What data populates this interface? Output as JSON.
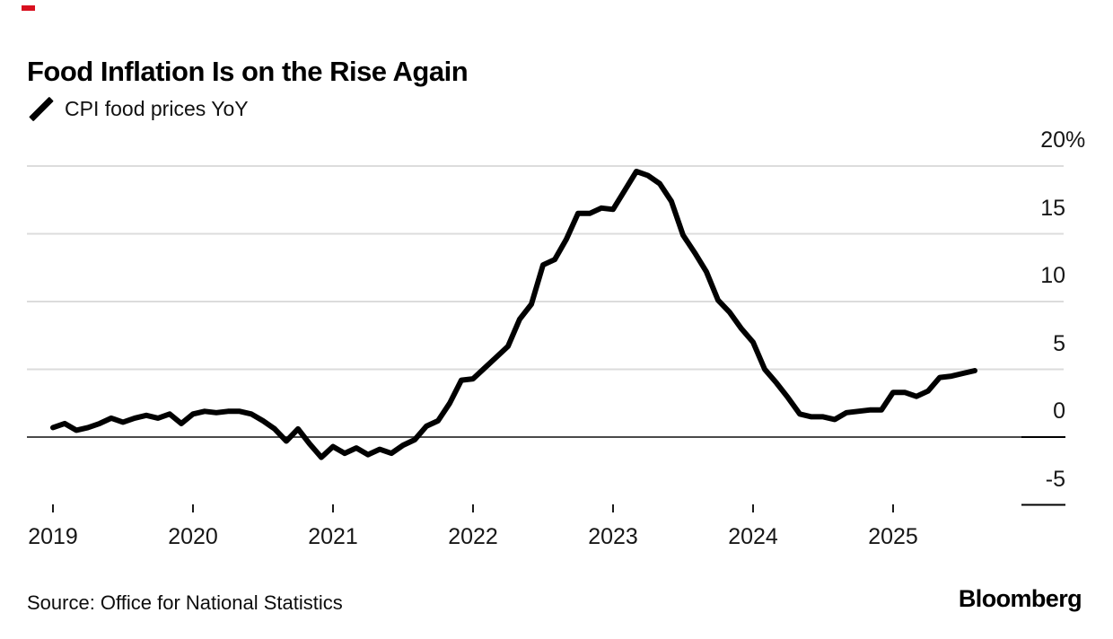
{
  "brand": {
    "red_mark_color": "#d8101f",
    "logo_text": "Bloomberg"
  },
  "header": {
    "title": "Food Inflation Is on the Rise Again"
  },
  "legend": {
    "series_label": "CPI food prices YoY",
    "swatch_color": "#000000"
  },
  "source": {
    "text": "Source: Office for National Statistics"
  },
  "chart_data": {
    "type": "line",
    "title": "Food Inflation Is on the Rise Again",
    "xlabel": "",
    "ylabel": "CPI food prices YoY (%)",
    "frequency": "monthly",
    "x_start": "2019-01",
    "x_end": "2025-08",
    "grid": "horizontal",
    "legend_position": "top-left",
    "line_color": "#000000",
    "grid_color": "#dcdcdc",
    "zero_line_color": "#4a4a4a",
    "axis_text_color": "#161616",
    "ylim": [
      -6.5,
      22
    ],
    "x_tick_labels": [
      "2019",
      "2020",
      "2021",
      "2022",
      "2023",
      "2024",
      "2025"
    ],
    "x_tick_month_index": [
      0,
      12,
      24,
      36,
      48,
      60,
      72
    ],
    "y_ticks": [
      {
        "label": "20",
        "suffix": "%",
        "value": 20,
        "style": "grid"
      },
      {
        "label": "15",
        "suffix": "",
        "value": 15,
        "style": "grid"
      },
      {
        "label": "10",
        "suffix": "",
        "value": 10,
        "style": "grid"
      },
      {
        "label": "5",
        "suffix": "",
        "value": 5,
        "style": "grid"
      },
      {
        "label": "0",
        "suffix": "",
        "value": 0,
        "style": "zero"
      },
      {
        "label": "-5",
        "suffix": "",
        "value": -5,
        "style": "short"
      }
    ],
    "series": [
      {
        "name": "CPI food prices YoY",
        "color": "#000000",
        "values": [
          0.7,
          1.0,
          0.5,
          0.7,
          1.0,
          1.4,
          1.1,
          1.4,
          1.6,
          1.4,
          1.7,
          1.0,
          1.7,
          1.9,
          1.8,
          1.9,
          1.9,
          1.7,
          1.2,
          0.6,
          -0.3,
          0.6,
          -0.5,
          -1.5,
          -0.7,
          -1.2,
          -0.8,
          -1.3,
          -0.9,
          -1.2,
          -0.6,
          -0.2,
          0.8,
          1.2,
          2.5,
          4.2,
          4.3,
          5.1,
          5.9,
          6.7,
          8.7,
          9.8,
          12.7,
          13.1,
          14.6,
          16.5,
          16.5,
          16.9,
          16.8,
          18.2,
          19.6,
          19.3,
          18.7,
          17.4,
          14.9,
          13.6,
          12.2,
          10.1,
          9.2,
          8.0,
          7.0,
          5.0,
          4.0,
          2.9,
          1.7,
          1.5,
          1.5,
          1.3,
          1.8,
          1.9,
          2.0,
          2.0,
          3.3,
          3.3,
          3.0,
          3.4,
          4.4,
          4.5,
          4.7,
          4.9
        ]
      }
    ]
  }
}
